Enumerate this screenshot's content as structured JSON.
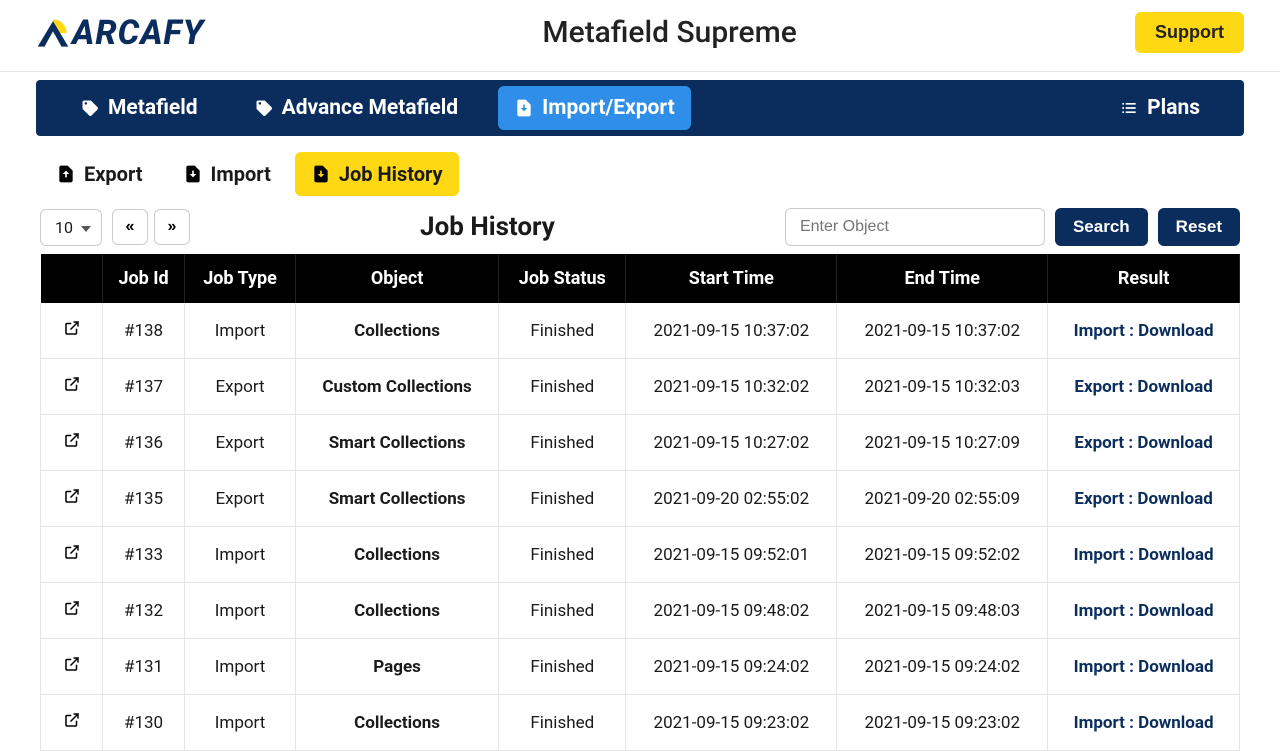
{
  "header": {
    "logo_text": "ARCAFY",
    "app_title": "Metafield Supreme",
    "support_label": "Support",
    "colors": {
      "brand_navy": "#0b2d5e",
      "brand_yellow": "#ffd814",
      "active_blue": "#2f8fe8"
    }
  },
  "nav": {
    "items": [
      {
        "label": "Metafield",
        "icon": "tag-icon",
        "active": false
      },
      {
        "label": "Advance Metafield",
        "icon": "tag-icon",
        "active": false
      },
      {
        "label": "Import/Export",
        "icon": "import-icon",
        "active": true
      }
    ],
    "right": {
      "label": "Plans",
      "icon": "list-icon"
    }
  },
  "subtabs": [
    {
      "label": "Export",
      "icon": "export-icon",
      "active": false
    },
    {
      "label": "Import",
      "icon": "import-icon",
      "active": false
    },
    {
      "label": "Job History",
      "icon": "import-icon",
      "active": true
    }
  ],
  "controls": {
    "page_size": "10",
    "prev_label": "«",
    "next_label": "»",
    "title": "Job History",
    "search_placeholder": "Enter Object",
    "search_label": "Search",
    "reset_label": "Reset"
  },
  "table": {
    "columns": [
      "",
      "Job Id",
      "Job Type",
      "Object",
      "Job Status",
      "Start Time",
      "End Time",
      "Result"
    ],
    "rows": [
      {
        "id": "#138",
        "type": "Import",
        "object": "Collections",
        "status": "Finished",
        "start": "2021-09-15 10:37:02",
        "end": "2021-09-15 10:37:02",
        "result_prefix": "Import : ",
        "result_link": "Download"
      },
      {
        "id": "#137",
        "type": "Export",
        "object": "Custom Collections",
        "status": "Finished",
        "start": "2021-09-15 10:32:02",
        "end": "2021-09-15 10:32:03",
        "result_prefix": "Export : ",
        "result_link": "Download"
      },
      {
        "id": "#136",
        "type": "Export",
        "object": "Smart Collections",
        "status": "Finished",
        "start": "2021-09-15 10:27:02",
        "end": "2021-09-15 10:27:09",
        "result_prefix": "Export : ",
        "result_link": "Download"
      },
      {
        "id": "#135",
        "type": "Export",
        "object": "Smart Collections",
        "status": "Finished",
        "start": "2021-09-20 02:55:02",
        "end": "2021-09-20 02:55:09",
        "result_prefix": "Export : ",
        "result_link": "Download"
      },
      {
        "id": "#133",
        "type": "Import",
        "object": "Collections",
        "status": "Finished",
        "start": "2021-09-15 09:52:01",
        "end": "2021-09-15 09:52:02",
        "result_prefix": "Import : ",
        "result_link": "Download"
      },
      {
        "id": "#132",
        "type": "Import",
        "object": "Collections",
        "status": "Finished",
        "start": "2021-09-15 09:48:02",
        "end": "2021-09-15 09:48:03",
        "result_prefix": "Import : ",
        "result_link": "Download"
      },
      {
        "id": "#131",
        "type": "Import",
        "object": "Pages",
        "status": "Finished",
        "start": "2021-09-15 09:24:02",
        "end": "2021-09-15 09:24:02",
        "result_prefix": "Import : ",
        "result_link": "Download"
      },
      {
        "id": "#130",
        "type": "Import",
        "object": "Collections",
        "status": "Finished",
        "start": "2021-09-15 09:23:02",
        "end": "2021-09-15 09:23:02",
        "result_prefix": "Import : ",
        "result_link": "Download"
      }
    ]
  }
}
